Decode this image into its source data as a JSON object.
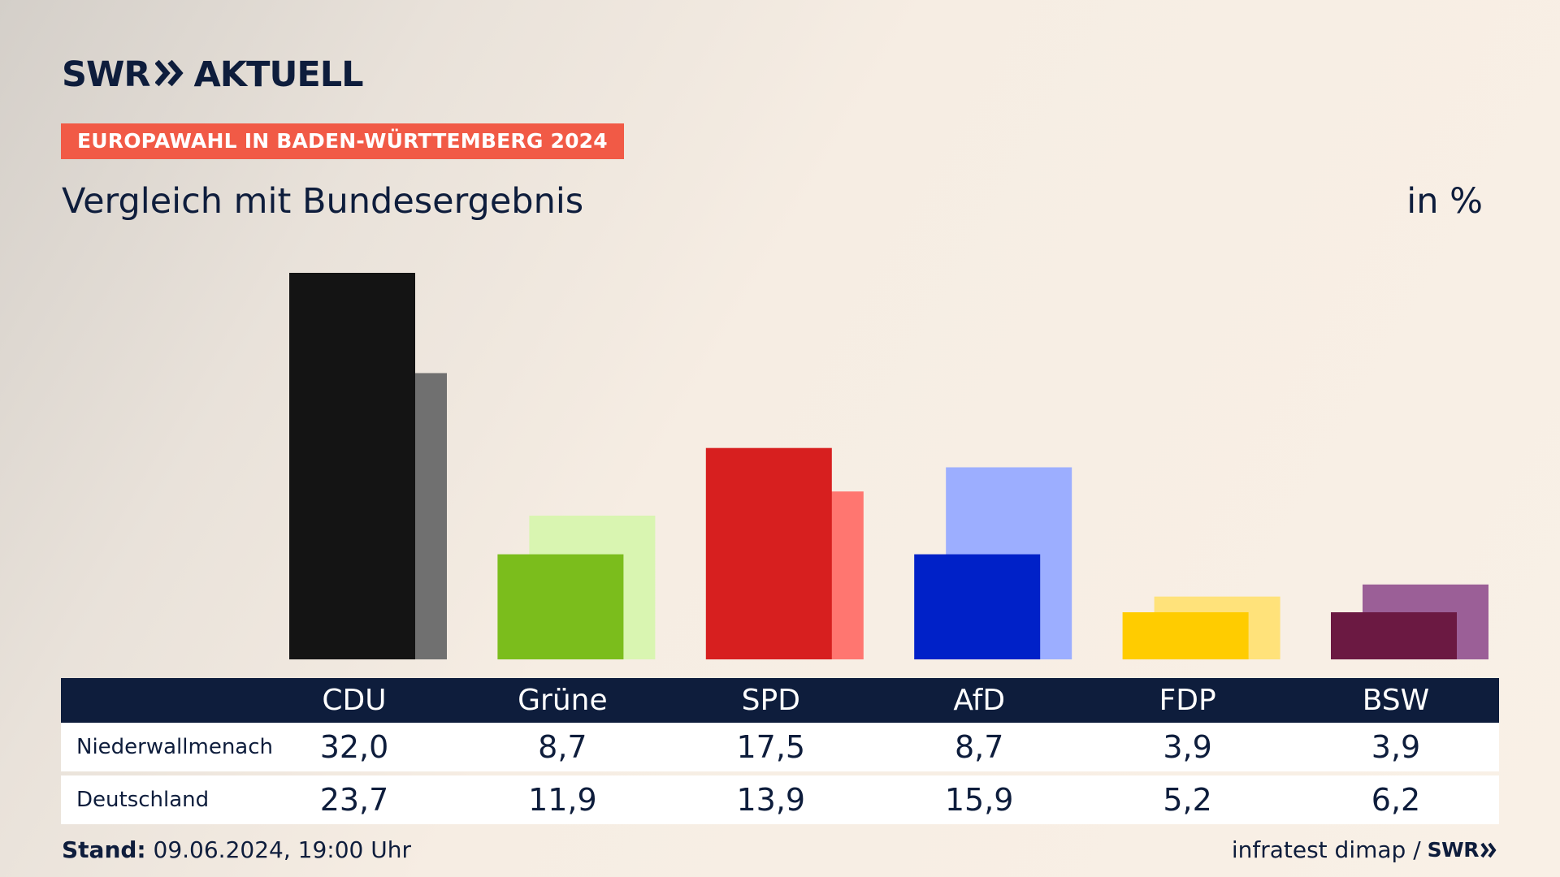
{
  "brand": {
    "logo_left": "SWR",
    "logo_right": "AKTUELL"
  },
  "header": {
    "tag": "EUROPAWAHL IN BADEN-WÜRTTEMBERG 2024",
    "subtitle": "Vergleich mit Bundesergebnis",
    "unit": "in %"
  },
  "chart_data": {
    "type": "bar",
    "categories": [
      "CDU",
      "Grüne",
      "SPD",
      "AfD",
      "FDP",
      "BSW"
    ],
    "series": [
      {
        "name": "Niederwallmenach",
        "values": [
          "32,0",
          "8,7",
          "17,5",
          "8,7",
          "3,9",
          "3,9"
        ]
      },
      {
        "name": "Deutschland",
        "values": [
          "23,7",
          "11,9",
          "13,9",
          "15,9",
          "5,2",
          "6,2"
        ]
      }
    ],
    "values_numeric": [
      [
        32.0,
        8.7,
        17.5,
        8.7,
        3.9,
        3.9
      ],
      [
        23.7,
        11.9,
        13.9,
        15.9,
        5.2,
        6.2
      ]
    ],
    "colors_primary": [
      "#141414",
      "#7bbd1c",
      "#d71f1f",
      "#0021c8",
      "#ffcc00",
      "#6b1942"
    ],
    "colors_secondary": [
      "#707070",
      "#d9f5b1",
      "#ff7670",
      "#9caeff",
      "#ffe27a",
      "#9b5f97"
    ],
    "ylim": [
      0,
      32.0
    ],
    "grid": false,
    "legend": "none"
  },
  "footer": {
    "stand_label": "Stand:",
    "stand_value": " 09.06.2024, 19:00 Uhr",
    "source": "infratest dimap /",
    "source_logo": "SWR"
  }
}
